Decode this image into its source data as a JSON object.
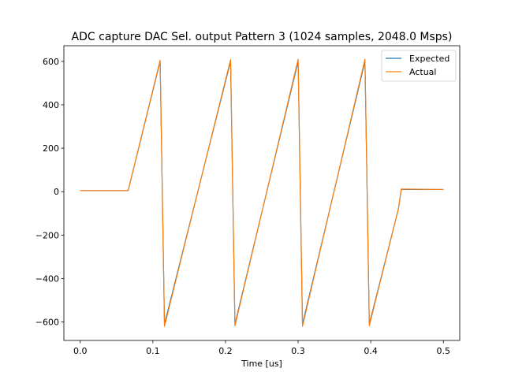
{
  "chart_data": {
    "type": "line",
    "title": "ADC capture DAC Sel. output Pattern 3 (1024 samples, 2048.0 Msps)",
    "xlabel": "Time [us]",
    "ylabel": "",
    "xlim": [
      -0.0225,
      0.5225
    ],
    "ylim": [
      -685,
      672
    ],
    "xticks": [
      0.0,
      0.1,
      0.2,
      0.3,
      0.4,
      0.5
    ],
    "xtick_labels": [
      "0.0",
      "0.1",
      "0.2",
      "0.3",
      "0.4",
      "0.5"
    ],
    "yticks": [
      -600,
      -400,
      -200,
      0,
      200,
      400,
      600
    ],
    "ytick_labels": [
      "−600",
      "−400",
      "−200",
      "0",
      "200",
      "400",
      "600"
    ],
    "grid": false,
    "legend_position": "top-right",
    "series": [
      {
        "name": "Expected",
        "color": "#1f77b4",
        "x": [
          0.0,
          0.066,
          0.11,
          0.113,
          0.116,
          0.207,
          0.21,
          0.213,
          0.3,
          0.303,
          0.306,
          0.392,
          0.395,
          0.398,
          0.438,
          0.442,
          0.5
        ],
        "y": [
          5,
          5,
          600,
          0,
          -610,
          600,
          0,
          -610,
          600,
          0,
          -610,
          600,
          0,
          -610,
          -80,
          10,
          10
        ]
      },
      {
        "name": "Actual",
        "color": "#ff7f0e",
        "x": [
          0.0,
          0.066,
          0.11,
          0.113,
          0.116,
          0.207,
          0.21,
          0.213,
          0.3,
          0.303,
          0.306,
          0.392,
          0.395,
          0.398,
          0.438,
          0.442,
          0.5
        ],
        "y": [
          5,
          5,
          605,
          0,
          -620,
          608,
          0,
          -618,
          610,
          0,
          -620,
          610,
          0,
          -618,
          -80,
          12,
          10
        ]
      }
    ]
  }
}
